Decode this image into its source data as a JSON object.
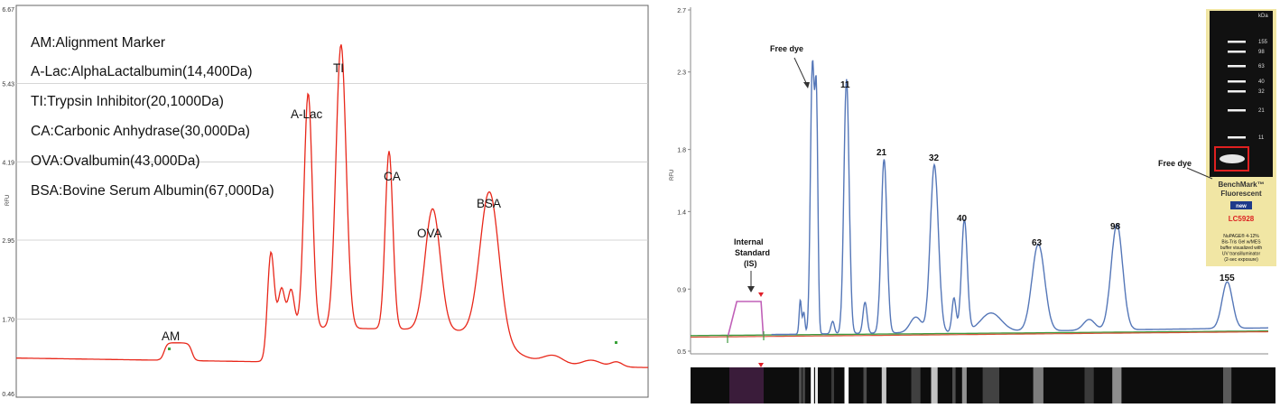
{
  "left_panel": {
    "legend": [
      "AM:Alignment Marker",
      "A-Lac:AlphaLactalbumin(14,400Da)",
      "TI:Trypsin Inhibitor(20,1000Da)",
      "CA:Carbonic Anhydrase(30,000Da)",
      "OVA:Ovalbumin(43,000Da)",
      "BSA:Bovine Serum Albumin(67,000Da)"
    ],
    "peak_labels": [
      "AM",
      "A-Lac",
      "TI",
      "CA",
      "OVA",
      "BSA"
    ],
    "chart_data": {
      "type": "line",
      "ylabel": "RFU",
      "yticks": [
        "6.67",
        "5.43",
        "4.19",
        "2.95",
        "1.70",
        "0.46"
      ],
      "ylim": [
        0.46,
        6.67
      ],
      "xlim": [
        0,
        100
      ],
      "grid": true,
      "color": "#e8271a",
      "baseline": 1.08,
      "series": [
        {
          "label": "AM",
          "x": 25.6,
          "height": 1.36,
          "width": 2.2
        },
        {
          "label": "",
          "x": 40.3,
          "height": 2.3,
          "width": 0.5
        },
        {
          "label": "",
          "x": 42.0,
          "height": 1.7,
          "width": 0.5
        },
        {
          "label": "",
          "x": 43.5,
          "height": 1.68,
          "width": 0.5
        },
        {
          "label": "A-Lac",
          "x": 46.2,
          "height": 4.8,
          "width": 0.65
        },
        {
          "label": "TI",
          "x": 51.4,
          "height": 5.58,
          "width": 0.8
        },
        {
          "label": "CA",
          "x": 59.0,
          "height": 3.9,
          "width": 0.6
        },
        {
          "label": "OVA",
          "x": 65.9,
          "height": 3.0,
          "width": 1.2
        },
        {
          "label": "BSA",
          "x": 74.9,
          "height": 3.4,
          "width": 1.5
        },
        {
          "label": "",
          "x": 85.0,
          "height": 1.22,
          "width": 1.6
        },
        {
          "label": "",
          "x": 91.0,
          "height": 1.18,
          "width": 1.5
        },
        {
          "label": "",
          "x": 95.0,
          "height": 1.16,
          "width": 0.9
        }
      ]
    }
  },
  "right_panel": {
    "free_dye": "Free dye",
    "internal_standard": [
      "Internal",
      "Standard",
      "(IS)"
    ],
    "peak_labels": [
      "11",
      "21",
      "32",
      "40",
      "63",
      "98",
      "155"
    ],
    "chart_data": {
      "type": "line",
      "ylabel": "RFU",
      "yticks": [
        "2.7",
        "2.3",
        "1.8",
        "1.4",
        "0.9",
        "0.5"
      ],
      "ylim": [
        0.5,
        2.7
      ],
      "xlim": [
        0,
        100
      ],
      "grid": false,
      "color": "#5577b8",
      "baseline": 0.6,
      "series": [
        {
          "label": "",
          "x": 19.0,
          "height": 0.82,
          "width": 0.2
        },
        {
          "label": "",
          "x": 19.6,
          "height": 0.74,
          "width": 0.2
        },
        {
          "label": "Free dye",
          "x": 21.1,
          "height": 2.34,
          "width": 0.35
        },
        {
          "label": "",
          "x": 21.8,
          "height": 1.98,
          "width": 0.25
        },
        {
          "label": "",
          "x": 24.6,
          "height": 0.68,
          "width": 0.3
        },
        {
          "label": "11",
          "x": 27.0,
          "height": 2.24,
          "width": 0.45
        },
        {
          "label": "",
          "x": 30.2,
          "height": 0.8,
          "width": 0.35
        },
        {
          "label": "21",
          "x": 33.5,
          "height": 1.72,
          "width": 0.5
        },
        {
          "label": "",
          "x": 39.0,
          "height": 0.7,
          "width": 1.0
        },
        {
          "label": "32",
          "x": 42.2,
          "height": 1.68,
          "width": 0.7
        },
        {
          "label": "",
          "x": 45.6,
          "height": 0.82,
          "width": 0.35
        },
        {
          "label": "40",
          "x": 47.4,
          "height": 1.32,
          "width": 0.5
        },
        {
          "label": "",
          "x": 52.0,
          "height": 0.72,
          "width": 1.8
        },
        {
          "label": "63",
          "x": 60.2,
          "height": 1.16,
          "width": 1.1
        },
        {
          "label": "",
          "x": 69.0,
          "height": 0.67,
          "width": 1.0
        },
        {
          "label": "98",
          "x": 73.8,
          "height": 1.28,
          "width": 1.0
        },
        {
          "label": "155",
          "x": 92.9,
          "height": 0.9,
          "width": 0.9
        }
      ]
    },
    "inset": {
      "unit": "kDa",
      "kda_labels": [
        "155",
        "98",
        "63",
        "40",
        "32",
        "21",
        "11"
      ],
      "free_dye": "Free dye",
      "product_1": "BenchMark™",
      "product_2": "Fluorescent",
      "badge": "new",
      "catalog": "LC5928",
      "description": [
        "NuPAGE® 4-12%",
        "Bis-Tris Gel w/MES",
        "buffer visualized with",
        "UV transilluminator",
        "(2-sec exposure)"
      ]
    }
  }
}
